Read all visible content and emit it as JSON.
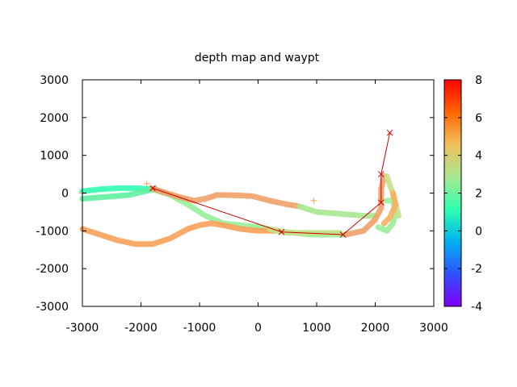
{
  "chart_data": {
    "type": "scatter",
    "title": "depth map   and waypt",
    "xlabel": "",
    "ylabel": "",
    "xlim": [
      -3000,
      3000
    ],
    "ylim": [
      -3000,
      3000
    ],
    "x_ticks": [
      "-3000",
      "-2000",
      "-1000",
      "0",
      "1000",
      "2000",
      "3000"
    ],
    "y_ticks": [
      "3000",
      "2000",
      "1000",
      "0",
      "-1000",
      "-2000",
      "-3000"
    ],
    "colorbar": {
      "range": [
        -4,
        8
      ],
      "ticks": [
        "8",
        "6",
        "4",
        "2",
        "0",
        "-2",
        "-4"
      ],
      "colors": [
        "#ff0000",
        "#ff6600",
        "#f0c060",
        "#a8e890",
        "#30ffb0",
        "#00b0f0",
        "#3050ff",
        "#8000ff"
      ]
    },
    "grid": false,
    "legend": "none",
    "depth_tracks": [
      {
        "points": [
          [
            -3000,
            50
          ],
          [
            -2700,
            100
          ],
          [
            -2400,
            130
          ],
          [
            -2100,
            130
          ],
          [
            -1900,
            110
          ],
          [
            -1800,
            100
          ]
        ],
        "color": "#30ffb0"
      },
      {
        "points": [
          [
            -3000,
            -150
          ],
          [
            -2600,
            -100
          ],
          [
            -2200,
            -50
          ],
          [
            -1900,
            60
          ],
          [
            -1750,
            110
          ]
        ],
        "color": "#60f0a0"
      },
      {
        "points": [
          [
            -1800,
            100
          ],
          [
            -1500,
            -50
          ],
          [
            -1200,
            -300
          ],
          [
            -900,
            -600
          ],
          [
            -600,
            -800
          ],
          [
            -300,
            -850
          ],
          [
            0,
            -900
          ],
          [
            200,
            -950
          ]
        ],
        "color": "#98f098"
      },
      {
        "points": [
          [
            -1800,
            120
          ],
          [
            -1400,
            -80
          ],
          [
            -1100,
            -200
          ],
          [
            -900,
            -150
          ],
          [
            -700,
            -50
          ],
          [
            -400,
            -60
          ],
          [
            -100,
            -80
          ],
          [
            200,
            -200
          ],
          [
            500,
            -300
          ],
          [
            700,
            -350
          ]
        ],
        "color": "#f0a068"
      },
      {
        "points": [
          [
            700,
            -350
          ],
          [
            1000,
            -500
          ],
          [
            1400,
            -550
          ],
          [
            1800,
            -600
          ],
          [
            2000,
            -600
          ]
        ],
        "color": "#a8e890"
      },
      {
        "points": [
          [
            -3000,
            -950
          ],
          [
            -2700,
            -1100
          ],
          [
            -2400,
            -1250
          ],
          [
            -2100,
            -1350
          ],
          [
            -1800,
            -1350
          ],
          [
            -1500,
            -1200
          ],
          [
            -1200,
            -950
          ],
          [
            -1000,
            -850
          ],
          [
            -800,
            -800
          ],
          [
            -600,
            -850
          ],
          [
            -300,
            -950
          ],
          [
            0,
            -1000
          ],
          [
            300,
            -1000
          ]
        ],
        "color": "#f8a058"
      },
      {
        "points": [
          [
            300,
            -1000
          ],
          [
            600,
            -1050
          ],
          [
            900,
            -1100
          ],
          [
            1200,
            -1100
          ],
          [
            1500,
            -1100
          ]
        ],
        "color": "#98f098"
      },
      {
        "points": [
          [
            200,
            -950
          ],
          [
            500,
            -1050
          ],
          [
            800,
            -1050
          ],
          [
            1100,
            -1050
          ],
          [
            1400,
            -1050
          ]
        ],
        "color": "#c8e088"
      },
      {
        "points": [
          [
            1500,
            -1100
          ],
          [
            1800,
            -1000
          ],
          [
            2000,
            -700
          ],
          [
            2100,
            -400
          ],
          [
            2100,
            100
          ],
          [
            2150,
            450
          ]
        ],
        "color": "#f0a068"
      },
      {
        "points": [
          [
            2200,
            -200
          ],
          [
            2300,
            -200
          ],
          [
            2350,
            -500
          ],
          [
            2300,
            -800
          ],
          [
            2200,
            -1000
          ],
          [
            2050,
            -900
          ]
        ],
        "color": "#98f098"
      },
      {
        "points": [
          [
            2200,
            450
          ],
          [
            2250,
            200
          ],
          [
            2300,
            0
          ],
          [
            2350,
            -300
          ],
          [
            2400,
            -600
          ]
        ],
        "color": "#c8e088"
      },
      {
        "points": [
          [
            2300,
            0
          ],
          [
            2350,
            -300
          ],
          [
            2250,
            -650
          ],
          [
            2150,
            -800
          ]
        ],
        "color": "#f8b060"
      }
    ],
    "waypoints": [
      {
        "x": -1800,
        "y": 130
      },
      {
        "x": 400,
        "y": -1030
      },
      {
        "x": 1450,
        "y": -1100
      },
      {
        "x": 2100,
        "y": -250
      },
      {
        "x": 2100,
        "y": 500
      },
      {
        "x": 2250,
        "y": 1600
      }
    ],
    "waypoint_color": "#cc0000",
    "extra_points": [
      {
        "x": -3000,
        "y": 0
      },
      {
        "x": -1900,
        "y": 250
      },
      {
        "x": 950,
        "y": -200
      }
    ],
    "extra_point_color": "#f8a058"
  }
}
